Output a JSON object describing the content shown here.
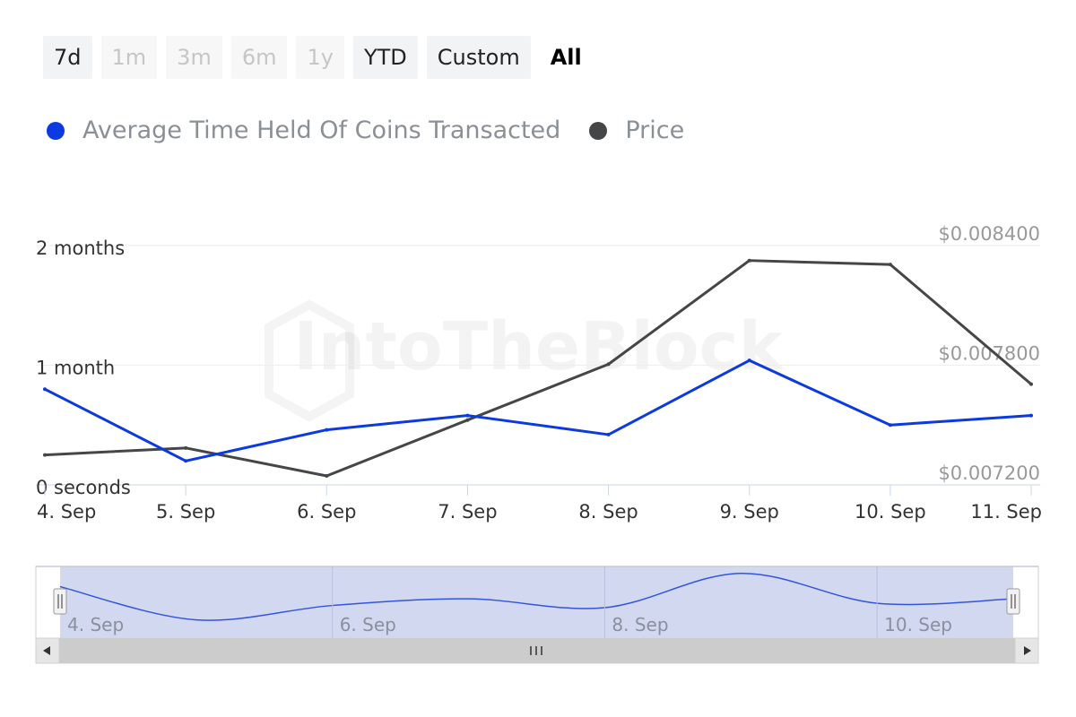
{
  "range_selector": {
    "buttons": [
      {
        "label": "7d",
        "state": "normal"
      },
      {
        "label": "1m",
        "state": "disabled"
      },
      {
        "label": "3m",
        "state": "disabled"
      },
      {
        "label": "6m",
        "state": "disabled"
      },
      {
        "label": "1y",
        "state": "disabled"
      },
      {
        "label": "YTD",
        "state": "normal"
      },
      {
        "label": "Custom",
        "state": "normal"
      },
      {
        "label": "All",
        "state": "active"
      }
    ]
  },
  "watermark": "IntoTheBlock",
  "colors": {
    "series_time_held": "#0a3ae0",
    "series_price": "#444648",
    "navigator_fill": "#ccd4ee",
    "navigator_line": "#3355dd"
  },
  "chart_data": {
    "type": "line",
    "x": [
      "4. Sep",
      "5. Sep",
      "6. Sep",
      "7. Sep",
      "8. Sep",
      "9. Sep",
      "10. Sep",
      "11. Sep"
    ],
    "series": [
      {
        "name": "Average Time Held Of Coins Transacted",
        "axis": "left",
        "unit": "months",
        "values": [
          0.8,
          0.2,
          0.46,
          0.58,
          0.42,
          1.04,
          0.5,
          0.58
        ]
      },
      {
        "name": "Price",
        "axis": "right",
        "unit": "USD",
        "values": [
          0.00735,
          0.007385,
          0.007245,
          0.007525,
          0.007805,
          0.008325,
          0.008305,
          0.007705
        ]
      }
    ],
    "y_left": {
      "ticks": [
        "0 seconds",
        "1 month",
        "2 months"
      ],
      "tick_values": [
        0,
        1,
        2
      ],
      "range": [
        0,
        2
      ]
    },
    "y_right": {
      "ticks": [
        "$0.007200",
        "$0.007800",
        "$0.008400"
      ],
      "tick_values": [
        0.0072,
        0.0078,
        0.0084
      ],
      "range": [
        0.0072,
        0.0084
      ]
    },
    "grid": true,
    "legend_placement": "top-left",
    "navigator": {
      "labels": [
        "4. Sep",
        "6. Sep",
        "8. Sep",
        "10. Sep"
      ]
    }
  }
}
